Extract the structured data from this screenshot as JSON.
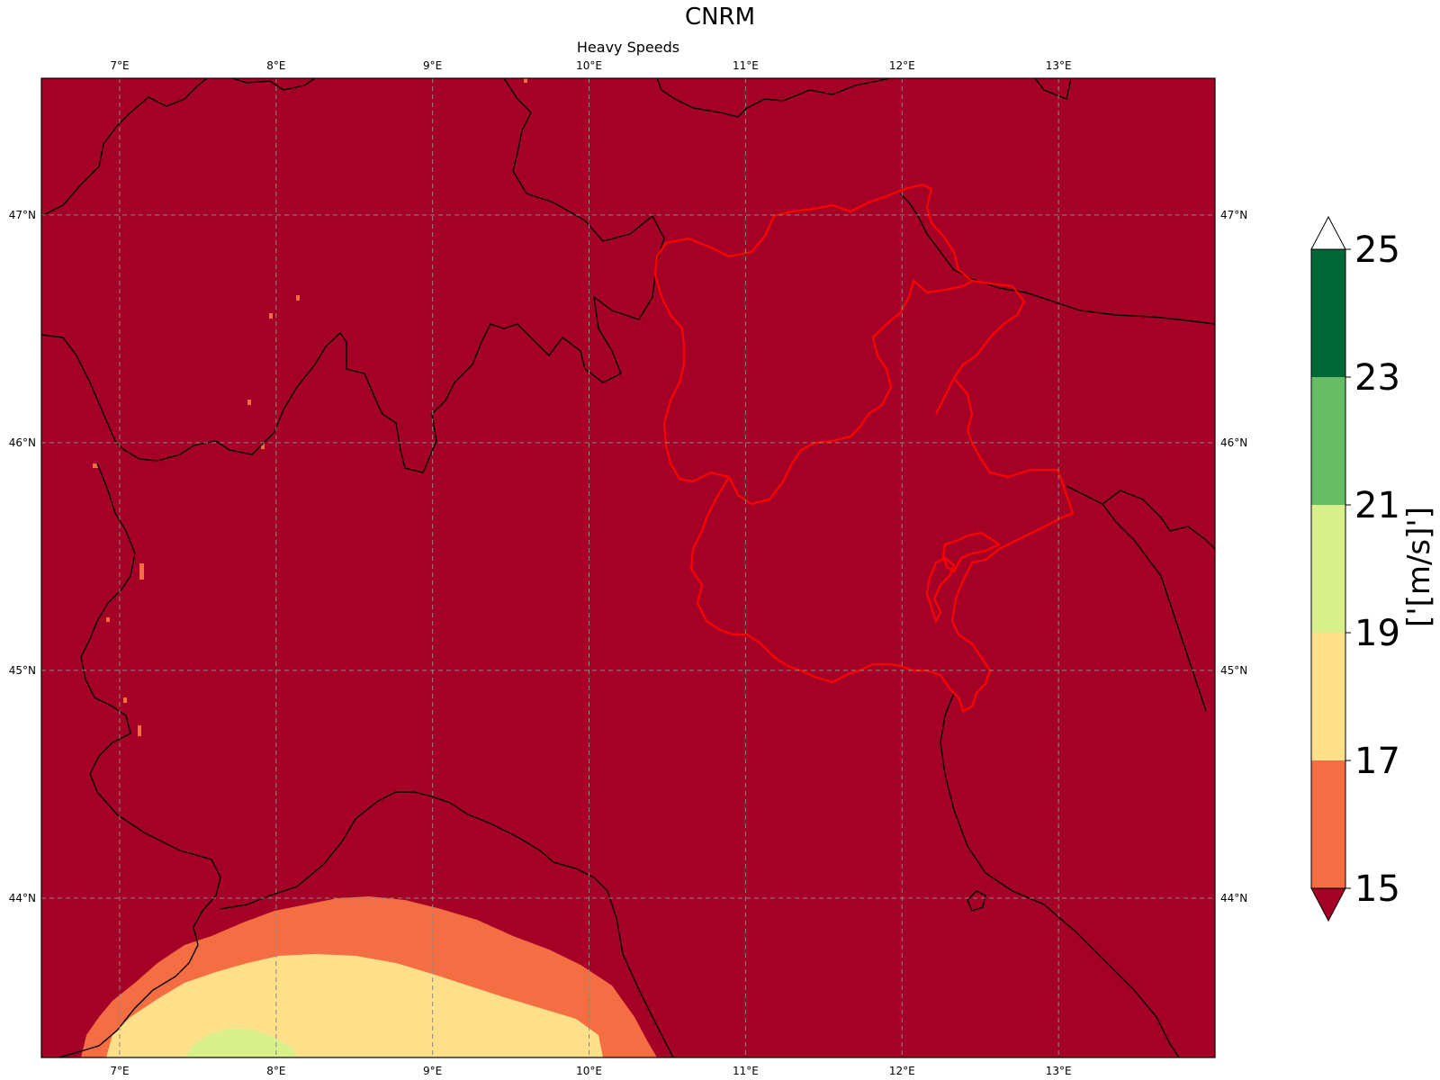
{
  "figure": {
    "title": "CNRM",
    "subtitle": "Heavy Speeds"
  },
  "map": {
    "lon_range": [
      6.5,
      14.0
    ],
    "lat_range": [
      43.3,
      47.6
    ],
    "lon_ticks": [
      7,
      8,
      9,
      10,
      11,
      12,
      13
    ],
    "lon_tick_labels": [
      "7°E",
      "8°E",
      "9°E",
      "10°E",
      "11°E",
      "12°E",
      "13°E"
    ],
    "lat_ticks": [
      44,
      45,
      46,
      47
    ],
    "lat_tick_labels": [
      "44°N",
      "45°N",
      "46°N",
      "47°N"
    ],
    "gridlines": true,
    "background_color": "#a50026",
    "coastline_color": "#000000",
    "region_outline_color": "#ff0000"
  },
  "colorbar": {
    "label": "['[m/s]']",
    "bounds": [
      15,
      17,
      19,
      21,
      23,
      25
    ],
    "bound_labels": [
      "15",
      "17",
      "19",
      "21",
      "23",
      "25"
    ],
    "colors": [
      "#f46d43",
      "#fee08b",
      "#d9ef8b",
      "#66bd63",
      "#006837"
    ],
    "under_color": "#a50026",
    "over_color": "#ffffff",
    "extend": "both"
  },
  "chart_data": {
    "type": "heatmap",
    "title": "CNRM",
    "subtitle": "Heavy Speeds",
    "units": "['[m/s]']",
    "levels": [
      15,
      17,
      19,
      21,
      23,
      25
    ],
    "domain_value": "<15",
    "regions": [
      {
        "range": "15-17",
        "lon_min": 6.8,
        "lon_max": 10.5,
        "lat_min": 43.3,
        "lat_peak": 43.95
      },
      {
        "range": "17-19",
        "lon_min": 6.95,
        "lon_max": 10.15,
        "lat_min": 43.3,
        "lat_peak": 43.82
      },
      {
        "range": "19-21",
        "lon_min": 7.45,
        "lon_max": 8.15,
        "lat_min": 43.3,
        "lat_peak": 43.43
      }
    ]
  }
}
